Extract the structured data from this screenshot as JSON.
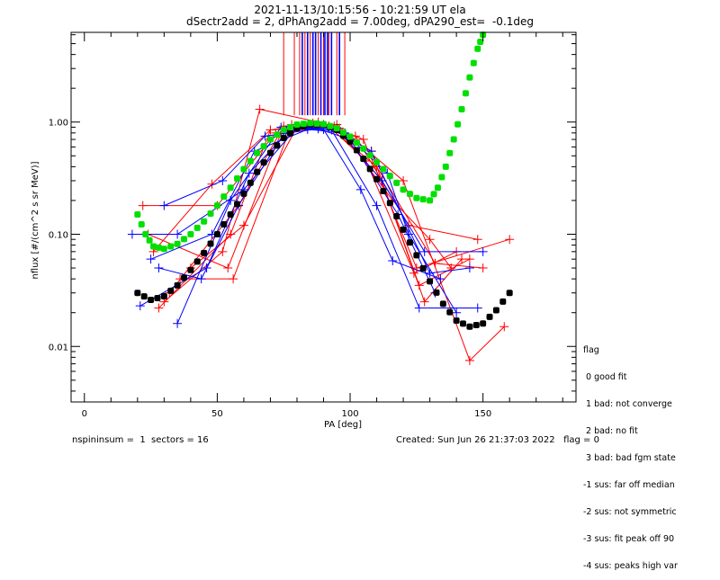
{
  "header": {
    "title_line1": "2021-11-13/10:15:56 - 10:21:59 UT ela",
    "title_line2": "dSectr2add = 2, dPhAng2add = 7.00deg, dPA290_est=  -0.1deg"
  },
  "footer": {
    "left": "nspininsum =  1  sectors = 16",
    "right": "Created: Sun Jun 26 21:37:03 2022   flag = 0"
  },
  "legend": {
    "title": "flag",
    "items": [
      " 0 good fit",
      " 1 bad: not converge",
      " 2 bad: no fit",
      " 3 bad: bad fgm state",
      "-1 sus: far off median",
      "-2 sus: not symmetric",
      "-3 sus: fit peak off 90",
      "-4 sus: peaks high var"
    ]
  },
  "chart_data": {
    "type": "line",
    "title": "2021-11-13/10:15:56 - 10:21:59 UT ela",
    "subtitle": "dSectr2add = 2, dPhAng2add = 7.00deg, dPA290_est=  -0.1deg",
    "xlabel": "PA [deg]",
    "ylabel": "nflux [#/(cm^2 s sr MeV)]",
    "xlim": [
      -5,
      185
    ],
    "ylim": [
      0.0032,
      6.3
    ],
    "yscale": "log",
    "x_ticks": [
      0,
      50,
      100,
      150
    ],
    "x_tick_labels": [
      "0",
      "50",
      "100",
      "150"
    ],
    "y_ticks": [
      0.01,
      0.1,
      1.0
    ],
    "y_tick_labels": [
      "0.01",
      "0.10",
      "1.00"
    ],
    "grid": false,
    "colors": {
      "fit": "#000000",
      "model": "#00e000",
      "trace_a": "#ff0000",
      "trace_b": "#0000ff"
    },
    "series": [
      {
        "name": "fit",
        "color": "#000000",
        "style": "thick-dotted",
        "x": [
          20,
          25,
          30,
          35,
          40,
          45,
          50,
          55,
          60,
          65,
          70,
          75,
          80,
          85,
          90,
          95,
          100,
          105,
          110,
          115,
          120,
          125,
          130,
          135,
          140,
          145,
          150,
          155,
          160
        ],
        "y": [
          0.03,
          0.026,
          0.028,
          0.035,
          0.048,
          0.068,
          0.1,
          0.15,
          0.23,
          0.36,
          0.53,
          0.72,
          0.88,
          0.96,
          0.95,
          0.85,
          0.67,
          0.47,
          0.31,
          0.19,
          0.11,
          0.065,
          0.038,
          0.024,
          0.017,
          0.015,
          0.016,
          0.021,
          0.03
        ]
      },
      {
        "name": "model",
        "color": "#00e000",
        "style": "thick-dotted",
        "x": [
          20,
          23,
          26,
          30,
          35,
          40,
          45,
          50,
          55,
          60,
          65,
          70,
          75,
          80,
          85,
          90,
          95,
          100,
          105,
          110,
          115,
          120,
          125,
          130,
          133,
          136,
          139,
          142,
          145,
          148,
          150
        ],
        "y": [
          0.15,
          0.1,
          0.078,
          0.074,
          0.082,
          0.1,
          0.13,
          0.18,
          0.26,
          0.38,
          0.53,
          0.7,
          0.85,
          0.95,
          0.98,
          0.96,
          0.88,
          0.74,
          0.58,
          0.44,
          0.33,
          0.25,
          0.21,
          0.2,
          0.26,
          0.4,
          0.7,
          1.3,
          2.5,
          4.5,
          6.0
        ]
      },
      {
        "name": "trace-red",
        "color": "#ff0000",
        "points_marker": "+",
        "traces": [
          {
            "x": [
              28,
              55,
              70,
              95,
              120,
              145,
              158
            ],
            "y": [
              0.022,
              0.1,
              0.85,
              0.95,
              0.3,
              0.0075,
              0.015
            ]
          },
          {
            "x": [
              30,
              52,
              66,
              88,
              105,
              125,
              160
            ],
            "y": [
              0.025,
              0.07,
              1.3,
              1.0,
              0.7,
              0.05,
              0.09
            ]
          },
          {
            "x": [
              32,
              58,
              75,
              92,
              110,
              132,
              150
            ],
            "y": [
              0.03,
              0.18,
              0.92,
              0.9,
              0.4,
              0.055,
              0.05
            ]
          },
          {
            "x": [
              22,
              50,
              72,
              90,
              108,
              128,
              142
            ],
            "y": [
              0.18,
              0.18,
              0.8,
              0.95,
              0.55,
              0.025,
              0.06
            ]
          },
          {
            "x": [
              26,
              48,
              70,
              86,
              102,
              122,
              148
            ],
            "y": [
              0.07,
              0.28,
              0.85,
              0.98,
              0.75,
              0.12,
              0.09
            ]
          },
          {
            "x": [
              36,
              56,
              78,
              94,
              112,
              126,
              145
            ],
            "y": [
              0.04,
              0.04,
              0.95,
              0.92,
              0.3,
              0.035,
              0.06
            ]
          },
          {
            "x": [
              40,
              60,
              80,
              96,
              116,
              130,
              138
            ],
            "y": [
              0.05,
              0.12,
              0.9,
              0.88,
              0.2,
              0.09,
              0.05
            ]
          },
          {
            "x": [
              24,
              54,
              74,
              92,
              106,
              124,
              140
            ],
            "y": [
              0.1,
              0.05,
              0.8,
              0.92,
              0.45,
              0.045,
              0.07
            ]
          }
        ]
      },
      {
        "name": "trace-blue",
        "color": "#0000ff",
        "points_marker": "+",
        "traces": [
          {
            "x": [
              18,
              35,
              60,
              80,
              95,
              112,
              128,
              150
            ],
            "y": [
              0.1,
              0.1,
              0.25,
              0.9,
              0.88,
              0.3,
              0.07,
              0.07
            ]
          },
          {
            "x": [
              21,
              46,
              62,
              78,
              93,
              110,
              126,
              148
            ],
            "y": [
              0.023,
              0.05,
              0.35,
              0.88,
              0.85,
              0.18,
              0.022,
              0.022
            ]
          },
          {
            "x": [
              35,
              55,
              74,
              90,
              104,
              116,
              134
            ],
            "y": [
              0.016,
              0.2,
              0.9,
              0.86,
              0.25,
              0.058,
              0.04
            ]
          },
          {
            "x": [
              25,
              48,
              64,
              84,
              98,
              114,
              122,
              140
            ],
            "y": [
              0.06,
              0.1,
              0.55,
              0.86,
              0.8,
              0.35,
              0.1,
              0.02
            ]
          },
          {
            "x": [
              28,
              44,
              58,
              76,
              92,
              108,
              130,
              145
            ],
            "y": [
              0.05,
              0.04,
              0.18,
              0.85,
              0.9,
              0.55,
              0.045,
              0.05
            ]
          },
          {
            "x": [
              30,
              52,
              68,
              88,
              100,
              118,
              132
            ],
            "y": [
              0.18,
              0.3,
              0.75,
              0.87,
              0.7,
              0.15,
              0.03
            ]
          }
        ]
      }
    ],
    "peak_markers": {
      "ymin": 1.15,
      "ymax": 6.3,
      "red_x": [
        75,
        79,
        81,
        83,
        85,
        88,
        90,
        92,
        95,
        98
      ],
      "blue_x": [
        82,
        84,
        86,
        87,
        89,
        90.5,
        91.5,
        93,
        96
      ]
    }
  }
}
